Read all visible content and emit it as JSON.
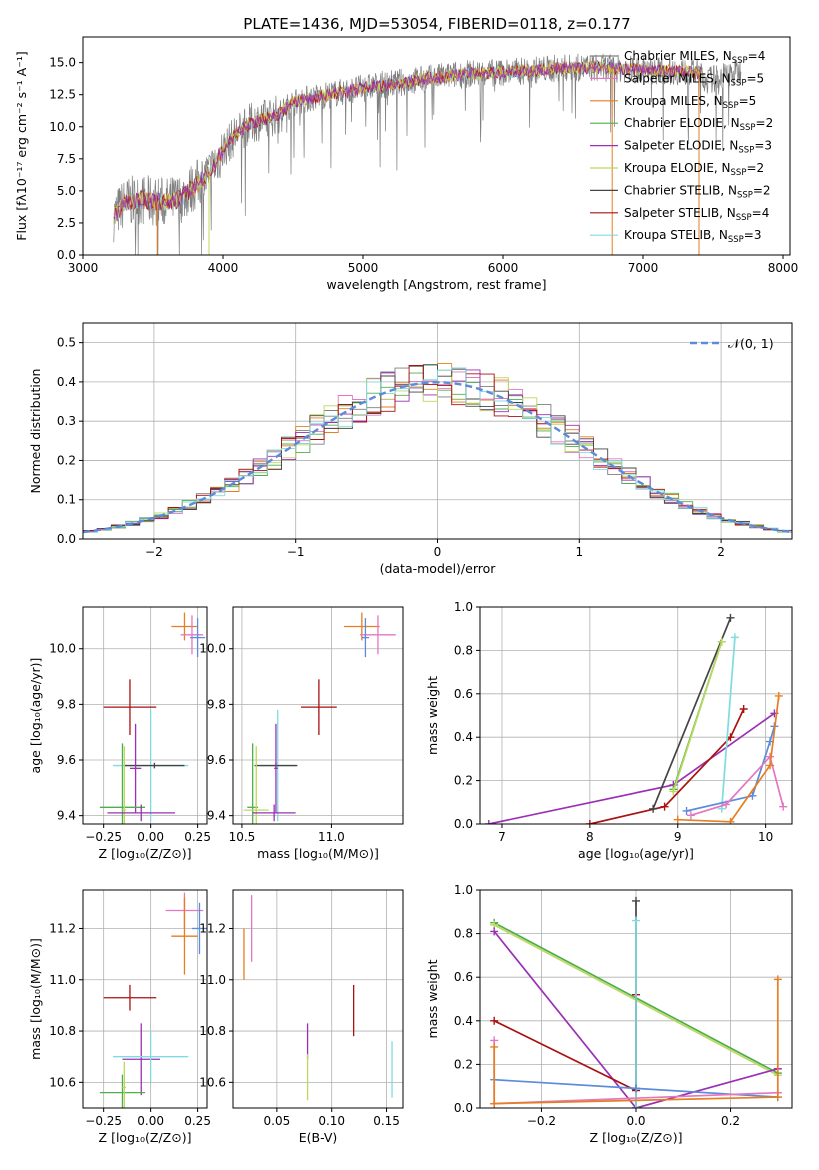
{
  "figure_title": "PLATE=1436, MJD=53054, FIBERID=0118, z=0.177",
  "colors": {
    "chabrier_miles": "#7f7f7f",
    "salpeter_miles": "#e377c2",
    "kroupa_miles": "#e67e22",
    "chabrier_elodie": "#4daf4a",
    "salpeter_elodie": "#9b30b5",
    "kroupa_elodie": "#bcd85f",
    "chabrier_stelib": "#444444",
    "salpeter_stelib": "#aa1111",
    "kroupa_stelib": "#7fdbe0",
    "normal": "#5b8bd9",
    "blue": "#5b8bd9"
  },
  "chart_data": [
    {
      "type": "line",
      "id": "spectrum",
      "ylabel": "Flux [fλ10⁻¹⁷ erg cm⁻² s⁻¹ A⁻¹]",
      "xlabel": "wavelength [Angstrom, rest frame]",
      "xlim": [
        3000,
        8050
      ],
      "ylim": [
        0,
        17
      ],
      "xticks": [
        "3000",
        "4000",
        "5000",
        "6000",
        "7000",
        "8000"
      ],
      "yticks": [
        "0.0",
        "2.5",
        "5.0",
        "7.5",
        "10.0",
        "12.5",
        "15.0"
      ],
      "legend_position": "right",
      "series": [
        {
          "name": "Chabrier MILES, N",
          "sub": "SSP",
          "suffix": "=4",
          "color": "#7f7f7f"
        },
        {
          "name": "Salpeter MILES, N",
          "sub": "SSP",
          "suffix": "=5",
          "color": "#e377c2"
        },
        {
          "name": "Kroupa MILES, N",
          "sub": "SSP",
          "suffix": "=5",
          "color": "#e67e22"
        },
        {
          "name": "Chabrier ELODIE, N",
          "sub": "SSP",
          "suffix": "=2",
          "color": "#4daf4a"
        },
        {
          "name": "Salpeter ELODIE, N",
          "sub": "SSP",
          "suffix": "=3",
          "color": "#9b30b5"
        },
        {
          "name": "Kroupa ELODIE, N",
          "sub": "SSP",
          "suffix": "=2",
          "color": "#bcd85f"
        },
        {
          "name": "Chabrier STELIB, N",
          "sub": "SSP",
          "suffix": "=2",
          "color": "#444444"
        },
        {
          "name": "Salpeter STELIB, N",
          "sub": "SSP",
          "suffix": "=4",
          "color": "#aa1111"
        },
        {
          "name": "Kroupa STELIB, N",
          "sub": "SSP",
          "suffix": "=3",
          "color": "#7fdbe0"
        }
      ],
      "continuum": [
        [
          3220,
          3.0
        ],
        [
          3300,
          4.1
        ],
        [
          3400,
          4.3
        ],
        [
          3500,
          4.2
        ],
        [
          3600,
          4.1
        ],
        [
          3700,
          4.4
        ],
        [
          3800,
          5.4
        ],
        [
          3900,
          6.3
        ],
        [
          4000,
          8.2
        ],
        [
          4100,
          9.5
        ],
        [
          4200,
          10.3
        ],
        [
          4300,
          10.6
        ],
        [
          4400,
          11.0
        ],
        [
          4500,
          11.9
        ],
        [
          4700,
          12.4
        ],
        [
          4900,
          12.8
        ],
        [
          5100,
          13.2
        ],
        [
          5300,
          13.5
        ],
        [
          5500,
          13.8
        ],
        [
          5700,
          14.1
        ],
        [
          5900,
          14.2
        ],
        [
          6100,
          14.3
        ],
        [
          6300,
          14.5
        ],
        [
          6500,
          14.6
        ],
        [
          6700,
          14.6
        ],
        [
          6900,
          14.5
        ],
        [
          7100,
          14.4
        ],
        [
          7300,
          14.3
        ],
        [
          7420,
          14.2
        ]
      ],
      "obs_range": [
        3220,
        7700
      ]
    },
    {
      "type": "bar",
      "id": "residuals",
      "ylabel": "Normed distribution",
      "xlabel": "(data-model)/error",
      "xlim": [
        -2.5,
        2.5
      ],
      "ylim": [
        0,
        0.55
      ],
      "xticks": [
        "−2",
        "−1",
        "0",
        "1",
        "2"
      ],
      "yticks": [
        "0.0",
        "0.1",
        "0.2",
        "0.3",
        "0.4",
        "0.5"
      ],
      "legend_label": "𝒩(0, 1)",
      "legend_position": "top-right",
      "bin_width": 0.1
    },
    {
      "type": "scatter",
      "id": "age_vs_Z",
      "ylabel": "age  [log₁₀(age/yr)]",
      "xlabel": "Z [log₁₀(Z/Z⊙)]",
      "xlim": [
        -0.36,
        0.3
      ],
      "ylim": [
        9.37,
        10.15
      ],
      "xticks": [
        "−0.25",
        "0.00",
        "0.25"
      ],
      "xtick_vals": [
        -0.25,
        0,
        0.25
      ],
      "yticks": [
        "9.4",
        "9.6",
        "9.8",
        "10.0"
      ],
      "ytick_vals": [
        9.4,
        9.6,
        9.8,
        10.0
      ],
      "points": [
        {
          "x": 0.18,
          "y": 10.08,
          "xe": 0.07,
          "ye": 0.05,
          "c": "#e67e22"
        },
        {
          "x": 0.22,
          "y": 10.05,
          "xe": 0.06,
          "ye": 0.07,
          "c": "#e377c2"
        },
        {
          "x": 0.25,
          "y": 10.04,
          "xe": 0.04,
          "ye": 0.07,
          "c": "#5b8bd9"
        },
        {
          "x": -0.11,
          "y": 9.79,
          "xe": 0.14,
          "ye": 0.1,
          "c": "#aa1111"
        },
        {
          "x": 0.0,
          "y": 9.58,
          "xe": 0.2,
          "ye": 0.2,
          "c": "#7fdbe0"
        },
        {
          "x": 0.02,
          "y": 9.58,
          "xe": 0.16,
          "ye": 0.01,
          "c": "#444444"
        },
        {
          "x": -0.08,
          "y": 9.57,
          "xe": 0.03,
          "ye": 0.16,
          "c": "#9b30b5"
        },
        {
          "x": -0.15,
          "y": 9.43,
          "xe": 0.12,
          "ye": 0.23,
          "c": "#4daf4a"
        },
        {
          "x": -0.14,
          "y": 9.42,
          "xe": 0.01,
          "ye": 0.23,
          "c": "#bcd85f"
        },
        {
          "x": -0.05,
          "y": 9.41,
          "xe": 0.18,
          "ye": 0.03,
          "c": "#9b30b5"
        }
      ]
    },
    {
      "type": "scatter",
      "id": "age_vs_mass",
      "ylabel": "",
      "xlabel": "mass [log₁₀(M/M⊙)]",
      "xlim": [
        10.45,
        11.4
      ],
      "ylim": [
        9.37,
        10.15
      ],
      "xticks": [
        "10.5",
        "11.0"
      ],
      "xtick_vals": [
        10.5,
        11.0
      ],
      "yticks": [
        "9.4",
        "9.6",
        "9.8",
        "10.0"
      ],
      "ytick_vals": [
        9.4,
        9.6,
        9.8,
        10.0
      ],
      "points": [
        {
          "x": 11.17,
          "y": 10.08,
          "xe": 0.1,
          "ye": 0.05,
          "c": "#e67e22"
        },
        {
          "x": 11.26,
          "y": 10.05,
          "xe": 0.1,
          "ye": 0.07,
          "c": "#e377c2"
        },
        {
          "x": 11.19,
          "y": 10.04,
          "xe": 0.02,
          "ye": 0.07,
          "c": "#5b8bd9"
        },
        {
          "x": 10.93,
          "y": 9.79,
          "xe": 0.1,
          "ye": 0.1,
          "c": "#aa1111"
        },
        {
          "x": 10.7,
          "y": 9.58,
          "xe": 0.1,
          "ye": 0.2,
          "c": "#7fdbe0"
        },
        {
          "x": 10.69,
          "y": 9.58,
          "xe": 0.12,
          "ye": 0.01,
          "c": "#444444"
        },
        {
          "x": 10.69,
          "y": 9.57,
          "xe": 0.01,
          "ye": 0.16,
          "c": "#9b30b5"
        },
        {
          "x": 10.56,
          "y": 9.43,
          "xe": 0.03,
          "ye": 0.23,
          "c": "#4daf4a"
        },
        {
          "x": 10.58,
          "y": 9.42,
          "xe": 0.07,
          "ye": 0.23,
          "c": "#bcd85f"
        },
        {
          "x": 10.68,
          "y": 9.41,
          "xe": 0.12,
          "ye": 0.03,
          "c": "#9b30b5"
        }
      ]
    },
    {
      "type": "line",
      "id": "mw_vs_age",
      "ylabel": "mass weight",
      "xlabel": "age  [log₁₀(age/yr)]",
      "xlim": [
        6.75,
        10.3
      ],
      "ylim": [
        0,
        1
      ],
      "xticks": [
        "7",
        "8",
        "9",
        "10"
      ],
      "xtick_vals": [
        7,
        8,
        9,
        10
      ],
      "yticks": [
        "0.0",
        "0.2",
        "0.4",
        "0.6",
        "0.8",
        "1.0"
      ],
      "ytick_vals": [
        0,
        0.2,
        0.4,
        0.6,
        0.8,
        1.0
      ],
      "series": [
        {
          "c": "#9b30b5",
          "pts": [
            [
              6.85,
              0.0
            ],
            [
              8.95,
              0.18
            ],
            [
              10.1,
              0.51
            ]
          ]
        },
        {
          "c": "#aa1111",
          "pts": [
            [
              8.0,
              0.0
            ],
            [
              8.85,
              0.08
            ],
            [
              9.6,
              0.4
            ],
            [
              9.75,
              0.53
            ]
          ]
        },
        {
          "c": "#444444",
          "pts": [
            [
              8.72,
              0.07
            ],
            [
              9.6,
              0.95
            ]
          ]
        },
        {
          "c": "#4daf4a",
          "pts": [
            [
              8.95,
              0.16
            ],
            [
              9.5,
              0.84
            ]
          ]
        },
        {
          "c": "#bcd85f",
          "pts": [
            [
              8.95,
              0.15
            ],
            [
              9.5,
              0.84
            ]
          ]
        },
        {
          "c": "#7fdbe0",
          "pts": [
            [
              9.5,
              0.07
            ],
            [
              9.65,
              0.86
            ]
          ]
        },
        {
          "c": "#5b8bd9",
          "pts": [
            [
              9.1,
              0.06
            ],
            [
              9.85,
              0.13
            ],
            [
              10.05,
              0.38
            ],
            [
              10.1,
              0.45
            ]
          ]
        },
        {
          "c": "#e377c2",
          "pts": [
            [
              9.15,
              0.04
            ],
            [
              9.55,
              0.09
            ],
            [
              10.05,
              0.31
            ],
            [
              10.2,
              0.08
            ]
          ]
        },
        {
          "c": "#e67e22",
          "pts": [
            [
              9.0,
              0.02
            ],
            [
              9.6,
              0.01
            ],
            [
              10.05,
              0.27
            ],
            [
              10.15,
              0.59
            ]
          ]
        }
      ]
    },
    {
      "type": "scatter",
      "id": "mass_vs_Z",
      "ylabel": "mass [log₁₀(M/M⊙)]",
      "xlabel": "Z [log₁₀(Z/Z⊙)]",
      "xlim": [
        -0.36,
        0.3
      ],
      "ylim": [
        10.5,
        11.35
      ],
      "xticks": [
        "−0.25",
        "0.00",
        "0.25"
      ],
      "xtick_vals": [
        -0.25,
        0,
        0.25
      ],
      "yticks": [
        "10.6",
        "10.8",
        "11.0",
        "11.2"
      ],
      "ytick_vals": [
        10.6,
        10.8,
        11.0,
        11.2
      ],
      "points": [
        {
          "x": 0.18,
          "y": 11.27,
          "xe": 0.1,
          "ye": 0.07,
          "c": "#e377c2"
        },
        {
          "x": 0.18,
          "y": 11.17,
          "xe": 0.07,
          "ye": 0.15,
          "c": "#e67e22"
        },
        {
          "x": 0.26,
          "y": 11.2,
          "xe": 0.04,
          "ye": 0.1,
          "c": "#5b8bd9"
        },
        {
          "x": -0.11,
          "y": 10.93,
          "xe": 0.14,
          "ye": 0.05,
          "c": "#aa1111"
        },
        {
          "x": -0.05,
          "y": 10.69,
          "xe": 0.1,
          "ye": 0.14,
          "c": "#9b30b5"
        },
        {
          "x": 0.0,
          "y": 10.7,
          "xe": 0.2,
          "ye": 0.1,
          "c": "#7fdbe0"
        },
        {
          "x": -0.15,
          "y": 10.56,
          "xe": 0.12,
          "ye": 0.07,
          "c": "#4daf4a"
        },
        {
          "x": -0.14,
          "y": 10.58,
          "xe": 0.01,
          "ye": 0.1,
          "c": "#bcd85f"
        }
      ]
    },
    {
      "type": "scatter",
      "id": "mass_vs_ebv",
      "ylabel": "",
      "xlabel": "E(B-V)",
      "xlim": [
        0.01,
        0.165
      ],
      "ylim": [
        10.5,
        11.35
      ],
      "xticks": [
        "0.05",
        "0.10",
        "0.15"
      ],
      "xtick_vals": [
        0.05,
        0.1,
        0.15
      ],
      "yticks": [
        "10.6",
        "10.8",
        "11.0",
        "11.2"
      ],
      "ytick_vals": [
        10.6,
        10.8,
        11.0,
        11.2
      ],
      "points": [
        {
          "x": 0.027,
          "y": 11.2,
          "xe": 0,
          "ye": 0.13,
          "c": "#e377c2"
        },
        {
          "x": 0.02,
          "y": 11.1,
          "xe": 0,
          "ye": 0.1,
          "c": "#e67e22"
        },
        {
          "x": 0.12,
          "y": 10.88,
          "xe": 0,
          "ye": 0.1,
          "c": "#aa1111"
        },
        {
          "x": 0.078,
          "y": 10.76,
          "xe": 0,
          "ye": 0.07,
          "c": "#9b30b5"
        },
        {
          "x": 0.078,
          "y": 10.62,
          "xe": 0,
          "ye": 0.09,
          "c": "#bcd85f"
        },
        {
          "x": 0.155,
          "y": 10.65,
          "xe": 0,
          "ye": 0.11,
          "c": "#7fdbe0"
        }
      ]
    },
    {
      "type": "line",
      "id": "mw_vs_Z",
      "ylabel": "mass weight",
      "xlabel": "Z [log₁₀(Z/Z⊙)]",
      "xlim": [
        -0.33,
        0.33
      ],
      "ylim": [
        0,
        1
      ],
      "xticks": [
        "−0.2",
        "0.0",
        "0.2"
      ],
      "xtick_vals": [
        -0.2,
        0,
        0.2
      ],
      "yticks": [
        "0.0",
        "0.2",
        "0.4",
        "0.6",
        "0.8",
        "1.0"
      ],
      "ytick_vals": [
        0,
        0.2,
        0.4,
        0.6,
        0.8,
        1.0
      ],
      "series": [
        {
          "c": "#4daf4a",
          "pts": [
            [
              -0.3,
              0.85
            ],
            [
              0.3,
              0.16
            ]
          ]
        },
        {
          "c": "#bcd85f",
          "pts": [
            [
              -0.3,
              0.84
            ],
            [
              0.3,
              0.15
            ]
          ]
        },
        {
          "c": "#9b30b5",
          "pts": [
            [
              -0.3,
              0.81
            ],
            [
              0.0,
              0.0
            ],
            [
              0.3,
              0.18
            ]
          ]
        },
        {
          "c": "#aa1111",
          "pts": [
            [
              -0.3,
              0.4
            ],
            [
              0.0,
              0.08
            ],
            [
              0.0,
              0.52
            ]
          ]
        },
        {
          "c": "#444444",
          "pts": [
            [
              0.0,
              0.95
            ],
            [
              0.0,
              0.0
            ]
          ]
        },
        {
          "c": "#7fdbe0",
          "pts": [
            [
              0.0,
              0.86
            ],
            [
              0.0,
              0.0
            ]
          ]
        },
        {
          "c": "#5b8bd9",
          "pts": [
            [
              -0.3,
              0.13
            ],
            [
              0.0,
              0.09
            ],
            [
              0.3,
              0.05
            ]
          ]
        },
        {
          "c": "#e377c2",
          "pts": [
            [
              -0.3,
              0.31
            ],
            [
              -0.3,
              0.02
            ],
            [
              0.3,
              0.07
            ]
          ]
        },
        {
          "c": "#e67e22",
          "pts": [
            [
              -0.3,
              0.28
            ],
            [
              -0.3,
              0.02
            ],
            [
              0.3,
              0.05
            ],
            [
              0.3,
              0.59
            ]
          ]
        }
      ]
    }
  ]
}
